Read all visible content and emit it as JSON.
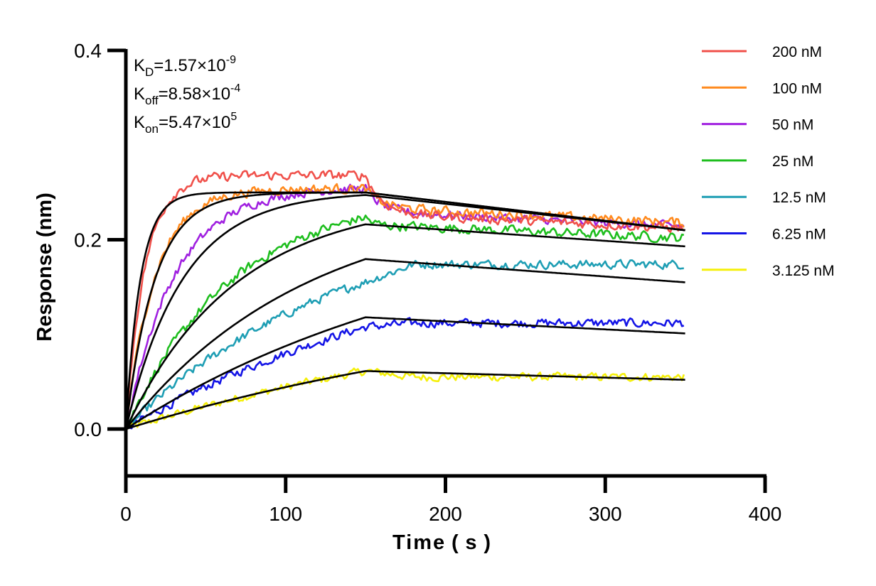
{
  "chart_data": {
    "type": "line",
    "title": "",
    "xlabel": "Time ( s )",
    "ylabel": "Response (nm)",
    "xlim": [
      0,
      400
    ],
    "ylim": [
      -0.05,
      0.4
    ],
    "xticks": [
      0,
      100,
      200,
      300,
      400
    ],
    "xtick_labels": [
      "0",
      "100",
      "200",
      "300",
      "400"
    ],
    "yticks": [
      0.0,
      0.2,
      0.4
    ],
    "ytick_labels": [
      "0.0",
      "0.2",
      "0.4"
    ],
    "grid": false,
    "legend_position": "top-right",
    "association_end_s": 150,
    "dissociation_end_s": 350,
    "annotations": [
      {
        "label": "K",
        "sub": "D",
        "value": "=1.57×10",
        "exp": "-9"
      },
      {
        "label": "K",
        "sub": "off",
        "value": "=8.58×10",
        "exp": "-4"
      },
      {
        "label": "K",
        "sub": "on",
        "value": "=5.47×10",
        "exp": "5"
      }
    ],
    "fit_color": "#000000",
    "series": [
      {
        "name": "200 nM",
        "color": "#F0504A",
        "obs_plateau": 0.268,
        "obs_kobs": 0.085,
        "obs_end": 0.212,
        "fit_plateau": 0.25,
        "fit_kobs": 0.11,
        "fit_end": 0.21,
        "noise": 0.0035
      },
      {
        "name": "100 nM",
        "color": "#FF8A1E",
        "obs_plateau": 0.254,
        "obs_kobs": 0.055,
        "obs_end": 0.218,
        "fit_plateau": 0.25,
        "fit_kobs": 0.055,
        "fit_end": 0.21,
        "noise": 0.0035
      },
      {
        "name": "50 nM",
        "color": "#A020E0",
        "obs_plateau": 0.256,
        "obs_kobs": 0.033,
        "obs_end": 0.214,
        "fit_plateau": 0.251,
        "fit_kobs": 0.028,
        "fit_end": 0.21,
        "noise": 0.0032
      },
      {
        "name": "25 nM",
        "color": "#1EBE1E",
        "obs_plateau": 0.25,
        "obs_kobs": 0.015,
        "obs_end": 0.202,
        "fit_plateau": 0.244,
        "fit_kobs": 0.0145,
        "fit_end": 0.193,
        "noise": 0.0035
      },
      {
        "name": "12.5 nM",
        "color": "#1E9EB4",
        "obs_plateau": 0.23,
        "obs_kobs": 0.0075,
        "obs_end": 0.174,
        "fit_plateau": 0.245,
        "fit_kobs": 0.0088,
        "fit_end": 0.155,
        "noise": 0.0032
      },
      {
        "name": "6.25 nM",
        "color": "#1414E6",
        "obs_plateau": 0.21,
        "obs_kobs": 0.0048,
        "obs_end": 0.112,
        "fit_plateau": 0.23,
        "fit_kobs": 0.0048,
        "fit_end": 0.101,
        "noise": 0.0032
      },
      {
        "name": "3.125 nM",
        "color": "#F5F00A",
        "obs_plateau": 0.15,
        "obs_kobs": 0.0035,
        "obs_end": 0.055,
        "fit_plateau": 0.15,
        "fit_kobs": 0.0035,
        "fit_end": 0.052,
        "noise": 0.003
      }
    ]
  }
}
